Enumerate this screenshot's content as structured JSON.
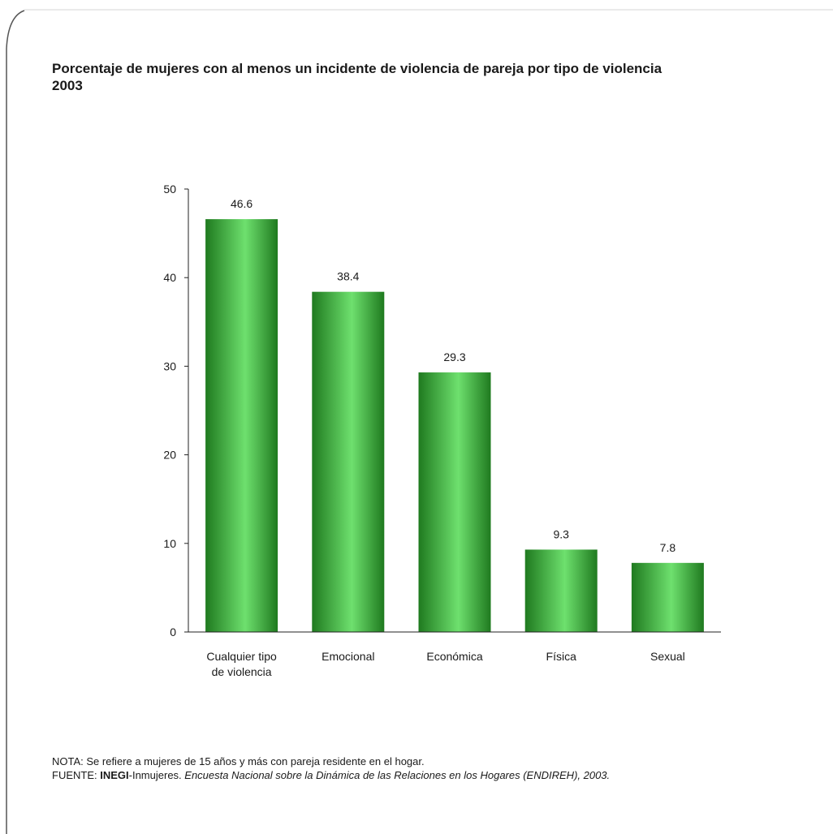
{
  "chart_data": {
    "type": "bar",
    "title": "Porcentaje de mujeres con al menos un incidente de violencia de pareja por tipo de violencia",
    "subtitle": "2003",
    "categories": [
      [
        "Cualquier tipo",
        "de violencia"
      ],
      [
        "Emocional"
      ],
      [
        "Económica"
      ],
      [
        "Física"
      ],
      [
        "Sexual"
      ]
    ],
    "values": [
      46.6,
      38.4,
      29.3,
      9.3,
      7.8
    ],
    "value_labels": [
      "46.6",
      "38.4",
      "29.3",
      "9.3",
      "7.8"
    ],
    "ylim": [
      0,
      50
    ],
    "yticks": [
      0,
      10,
      20,
      30,
      40,
      50
    ],
    "xlabel": "",
    "ylabel": "",
    "grid": false,
    "bar_colors": {
      "edge": "#1f7a1f",
      "center": "#6ee06e"
    },
    "axis_color": "#222222"
  },
  "notes": {
    "nota": "NOTA: Se refiere a mujeres de 15 años y más con pareja residente en el hogar.",
    "fuente_prefix": "FUENTE: ",
    "fuente_org": "INEGI",
    "fuente_org2": "-Inmujeres. ",
    "fuente_title": "Encuesta Nacional sobre la Dinámica de las Relaciones en los Hogares (ENDIREH), 2003."
  }
}
